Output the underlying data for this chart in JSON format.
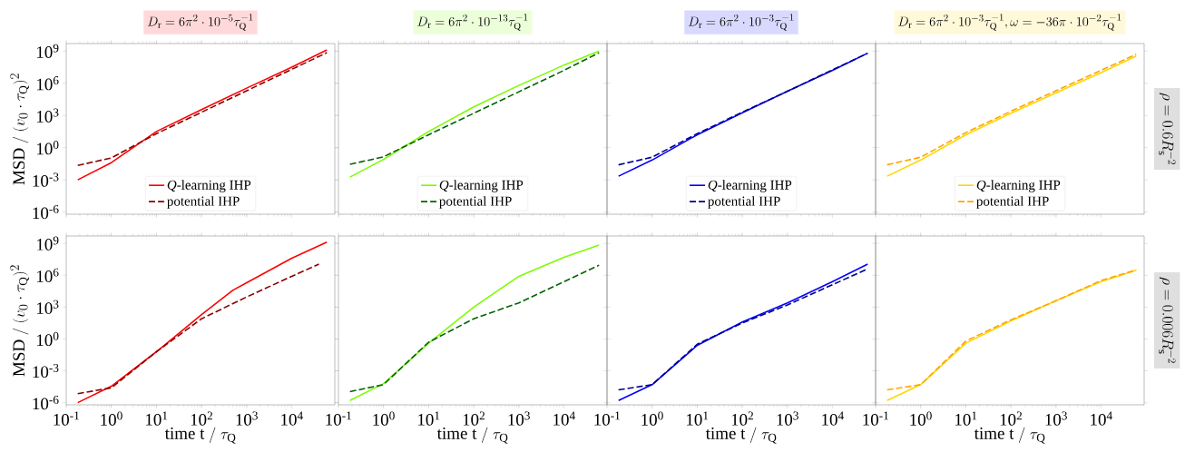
{
  "chart_data": [
    {
      "type": "line",
      "log": "xy",
      "title": "D_{\\mathrm{r}} = 6\\pi^2 \\cdot 10^{-5}\\tau_{\\mathrm{Q}}^{-1}",
      "ylabel": "\\mathrm{MSD}\\ /\\ (v_0 \\cdot \\tau_{\\mathrm{Q}})^2",
      "tick_labels": "y",
      "legend": "bottom",
      "x": [
        0.18,
        1,
        10,
        100,
        1000,
        10000,
        60000
      ],
      "xlim": [
        0.1,
        90000
      ],
      "ylim": [
        6.3e-07,
        5000000000.0
      ],
      "xticks": [
        0.1,
        1,
        10,
        100,
        1000,
        10000
      ],
      "yticks": [
        {
          "value": 1e-06,
          "label": "10$^{-6}$"
        },
        {
          "value": 0.001,
          "label": "10$^{-3}$"
        },
        {
          "value": 1,
          "label": "10$^{0}$"
        },
        {
          "value": 1000,
          "label": "10$^{3}$"
        },
        {
          "value": 1000000.0,
          "label": "10$^{6}$"
        },
        {
          "value": 1000000000.0,
          "label": "10$^{9}$"
        }
      ],
      "series": [
        {
          "name": "*Q*-learning IHP",
          "color": "#ff0000",
          "line_style": "solid",
          "values": [
            0.001,
            0.04,
            32,
            3500,
            350000.0,
            32000000.0,
            1300000000.0
          ]
        },
        {
          "name": "potential IHP",
          "color": "#8b0000",
          "line_style": "dashed",
          "values": [
            0.022,
            0.11,
            20,
            2000,
            200000.0,
            20000000.0,
            700000000.0
          ]
        }
      ]
    },
    {
      "type": "line",
      "log": "xy",
      "title": "D_{\\mathrm{r}} = 6\\pi^2 \\cdot 10^{-13}\\tau_{\\mathrm{Q}}^{-1}",
      "tick_labels": false,
      "legend": "bottom",
      "x": [
        0.18,
        1,
        10,
        100,
        1000,
        10000,
        60000
      ],
      "xlim": [
        0.1,
        90000
      ],
      "ylim": [
        6.3e-07,
        5000000000.0
      ],
      "xticks": [
        0.1,
        1,
        10,
        100,
        1000,
        10000
      ],
      "yticks": [
        1e-06,
        0.001,
        1,
        1000,
        1000000.0,
        1000000000.0
      ],
      "series": [
        {
          "name": "*Q*-learning IHP",
          "color": "#7cfc00",
          "line_style": "solid",
          "values": [
            0.0018,
            0.08,
            32,
            6300,
            630000.0,
            50000000.0,
            1000000000.0
          ]
        },
        {
          "name": "potential IHP",
          "color": "#006400",
          "line_style": "dashed",
          "values": [
            0.028,
            0.14,
            16,
            1600,
            160000.0,
            16000000.0,
            700000000.0
          ]
        }
      ]
    },
    {
      "type": "line",
      "log": "xy",
      "title": "D_{\\mathrm{r}} = 6\\pi^2 \\cdot 10^{-3}\\tau_{\\mathrm{Q}}^{-1}",
      "tick_labels": false,
      "legend": "bottom",
      "x": [
        0.18,
        1,
        10,
        100,
        1000,
        10000,
        60000
      ],
      "xlim": [
        0.1,
        90000
      ],
      "ylim": [
        6.3e-07,
        5000000000.0
      ],
      "xticks": [
        0.1,
        1,
        10,
        100,
        1000,
        10000
      ],
      "yticks": [
        1e-06,
        0.001,
        1,
        1000,
        1000000.0,
        1000000000.0
      ],
      "series": [
        {
          "name": "*Q*-learning IHP",
          "color": "#0000ff",
          "line_style": "solid",
          "values": [
            0.0022,
            0.07,
            16,
            1800,
            180000.0,
            16000000.0,
            630000000.0
          ]
        },
        {
          "name": "potential IHP",
          "color": "#00008b",
          "line_style": "dashed",
          "values": [
            0.025,
            0.13,
            20,
            2000,
            180000.0,
            18000000.0,
            630000000.0
          ]
        }
      ]
    },
    {
      "type": "line",
      "log": "xy",
      "title": "D_{\\mathrm{r}} = 6\\pi^2 \\cdot 10^{-3}\\tau_{\\mathrm{Q}}^{-1}, \\omega = -36\\pi \\cdot 10^{-2}\\tau_{\\mathrm{Q}}^{-1}",
      "tick_labels": false,
      "legend": "bottom",
      "annotations": [
        "\\rho = 0.6R_{\\mathrm{s}}^{-2}"
      ],
      "x": [
        0.18,
        1,
        10,
        100,
        1000,
        10000,
        60000
      ],
      "xlim": [
        0.1,
        90000
      ],
      "ylim": [
        6.3e-07,
        5000000000.0
      ],
      "xticks": [
        0.1,
        1,
        10,
        100,
        1000,
        10000
      ],
      "yticks": [
        1e-06,
        0.001,
        1,
        1000,
        1000000.0,
        1000000000.0
      ],
      "series": [
        {
          "name": "*Q*-learning IHP",
          "color": "#ffd700",
          "line_style": "solid",
          "values": [
            0.0022,
            0.07,
            16,
            1600,
            130000.0,
            10000000.0,
            350000000.0
          ]
        },
        {
          "name": "potential IHP",
          "color": "#ffa500",
          "line_style": "dashed",
          "values": [
            0.025,
            0.13,
            25,
            2500,
            200000.0,
            16000000.0,
            500000000.0
          ]
        }
      ]
    },
    {
      "type": "line",
      "log": "xy",
      "xlabel": "\\mathrm{time\\ t}\\ /\\ \\tau_{\\mathrm{Q}}",
      "ylabel": "\\mathrm{MSD}\\ /\\ (v_0 \\cdot \\tau_{\\mathrm{Q}})^2",
      "xlim": [
        0.1,
        90000
      ],
      "ylim": [
        6.3e-07,
        5000000000.0
      ],
      "xticks": [
        {
          "value": 0.1,
          "label": "10$^{-1}$"
        },
        {
          "value": 1,
          "label": "10$^{0}$"
        },
        {
          "value": 10,
          "label": "10$^{1}$"
        },
        {
          "value": 100,
          "label": "10$^{2}$"
        },
        {
          "value": 1000,
          "label": "10$^{3}$"
        },
        {
          "value": 10000,
          "label": "10$^{4}$"
        }
      ],
      "yticks": [
        {
          "value": 1e-06,
          "label": "10$^{-6}$"
        },
        {
          "value": 0.001,
          "label": "10$^{-3}$"
        },
        {
          "value": 1,
          "label": "10$^{0}$"
        },
        {
          "value": 1000,
          "label": "10$^{3}$"
        },
        {
          "value": 1000000.0,
          "label": "10$^{6}$"
        },
        {
          "value": 1000000000.0,
          "label": "10$^{9}$"
        }
      ],
      "series": [
        {
          "color": "#ff0000",
          "line_style": "solid",
          "x": [
            0.18,
            1,
            10,
            100,
            500,
            1000,
            10000,
            60000
          ],
          "values": [
            1e-06,
            3.5e-05,
            0.063,
            200,
            40000.0,
            200000.0,
            40000000.0,
            1300000000.0
          ]
        },
        {
          "color": "#8b0000",
          "line_style": "dashed",
          "x": [
            0.18,
            1,
            10,
            100,
            1000,
            10000,
            40000
          ],
          "values": [
            7e-06,
            2.5e-05,
            0.063,
            80,
            9000,
            800000.0,
            11000000.0
          ]
        }
      ]
    },
    {
      "type": "line",
      "log": "xy",
      "xlabel": "\\mathrm{time\\ t}\\ /\\ \\tau_{\\mathrm{Q}}",
      "tick_labels": "x",
      "x": [
        0.18,
        1,
        10,
        100,
        1000,
        10000,
        60000
      ],
      "xlim": [
        0.1,
        90000
      ],
      "ylim": [
        6.3e-07,
        5000000000.0
      ],
      "xticks": [
        {
          "value": 0.1,
          "label": "10$^{-1}$"
        },
        {
          "value": 1,
          "label": "10$^{0}$"
        },
        {
          "value": 10,
          "label": "10$^{1}$"
        },
        {
          "value": 100,
          "label": "10$^{2}$"
        },
        {
          "value": 1000,
          "label": "10$^{3}$"
        },
        {
          "value": 10000,
          "label": "10$^{4}$"
        }
      ],
      "yticks": [
        1e-06,
        0.001,
        1,
        1000,
        1000000.0,
        1000000000.0
      ],
      "series": [
        {
          "color": "#7cfc00",
          "line_style": "solid",
          "values": [
            1.6e-06,
            6.3e-05,
            0.4,
            1000,
            800000.0,
            50000000.0,
            700000000.0
          ]
        },
        {
          "color": "#006400",
          "line_style": "dashed",
          "values": [
            1.1e-05,
            5e-05,
            0.5,
            80,
            2500,
            250000.0,
            9000000.0
          ]
        }
      ]
    },
    {
      "type": "line",
      "log": "xy",
      "xlabel": "\\mathrm{time\\ t}\\ /\\ \\tau_{\\mathrm{Q}}",
      "tick_labels": "x",
      "x": [
        0.18,
        1,
        10,
        100,
        1000,
        10000,
        60000
      ],
      "xlim": [
        0.1,
        90000
      ],
      "ylim": [
        6.3e-07,
        5000000000.0
      ],
      "xticks": [
        {
          "value": 0.1,
          "label": "10$^{-1}$"
        },
        {
          "value": 1,
          "label": "10$^{0}$"
        },
        {
          "value": 10,
          "label": "10$^{1}$"
        },
        {
          "value": 100,
          "label": "10$^{2}$"
        },
        {
          "value": 1000,
          "label": "10$^{3}$"
        },
        {
          "value": 10000,
          "label": "10$^{4}$"
        }
      ],
      "yticks": [
        1e-06,
        0.001,
        1,
        1000,
        1000000.0,
        1000000000.0
      ],
      "series": [
        {
          "color": "#0000ff",
          "line_style": "solid",
          "values": [
            1.6e-06,
            5e-05,
            0.25,
            40,
            2500,
            250000.0,
            11000000.0
          ]
        },
        {
          "color": "#00008b",
          "line_style": "dashed",
          "values": [
            1.6e-05,
            5e-05,
            0.32,
            32,
            1600,
            130000.0,
            4000000.0
          ]
        }
      ]
    },
    {
      "type": "line",
      "log": "xy",
      "xlabel": "\\mathrm{time\\ t}\\ /\\ \\tau_{\\mathrm{Q}}",
      "tick_labels": "x",
      "annotations": [
        "\\rho = 0.006R_{\\mathrm{s}}^{-2}"
      ],
      "x": [
        0.18,
        1,
        10,
        100,
        1000,
        10000,
        60000
      ],
      "xlim": [
        0.1,
        90000
      ],
      "ylim": [
        6.3e-07,
        5000000000.0
      ],
      "xticks": [
        {
          "value": 0.1,
          "label": "10$^{-1}$"
        },
        {
          "value": 1,
          "label": "10$^{0}$"
        },
        {
          "value": 10,
          "label": "10$^{1}$"
        },
        {
          "value": 100,
          "label": "10$^{2}$"
        },
        {
          "value": 1000,
          "label": "10$^{3}$"
        },
        {
          "value": 10000,
          "label": "10$^{4}$"
        }
      ],
      "yticks": [
        1e-06,
        0.001,
        1,
        1000,
        1000000.0,
        1000000000.0
      ],
      "series": [
        {
          "color": "#ffd700",
          "line_style": "solid",
          "values": [
            1.6e-06,
            5e-05,
            0.4,
            50,
            4000,
            250000.0,
            3000000.0
          ]
        },
        {
          "color": "#ffa500",
          "line_style": "dashed",
          "values": [
            1.6e-05,
            5e-05,
            0.63,
            63,
            4000,
            320000.0,
            3200000.0
          ]
        }
      ]
    }
  ]
}
